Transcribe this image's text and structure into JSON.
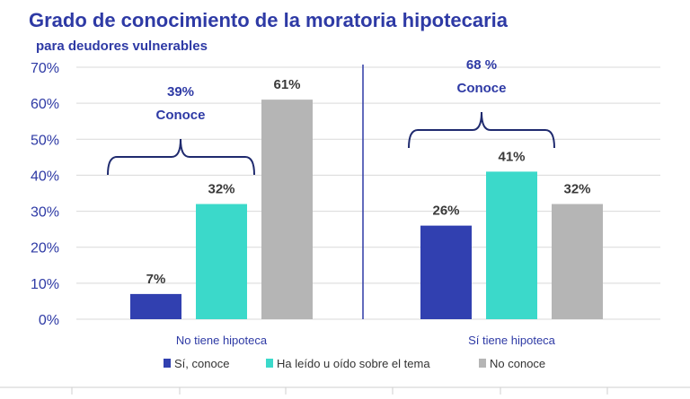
{
  "chart_data": {
    "type": "bar",
    "title": "Grado de conocimiento de la moratoria hipotecaria",
    "subtitle": "para deudores vulnerables",
    "categories": [
      "No tiene hipoteca",
      "Sí tiene hipoteca"
    ],
    "series": [
      {
        "name": "Sí, conoce",
        "color": "#3140b0",
        "values": [
          7,
          26
        ]
      },
      {
        "name": "Ha leído u oído sobre el tema",
        "color": "#3bd9ca",
        "values": [
          32,
          41
        ]
      },
      {
        "name": "No conoce",
        "color": "#b5b5b5",
        "values": [
          61,
          32
        ]
      }
    ],
    "data_labels": [
      [
        "7%",
        "32%",
        "61%"
      ],
      [
        "26%",
        "41%",
        "32%"
      ]
    ],
    "ylim": [
      0,
      70
    ],
    "yticks": [
      "0%",
      "10%",
      "20%",
      "30%",
      "40%",
      "50%",
      "60%",
      "70%"
    ],
    "brackets": [
      {
        "value": "39%",
        "label": "Conoce"
      },
      {
        "value": "68 %",
        "label": "Conoce"
      }
    ],
    "grid": true,
    "legend_position": "bottom"
  }
}
